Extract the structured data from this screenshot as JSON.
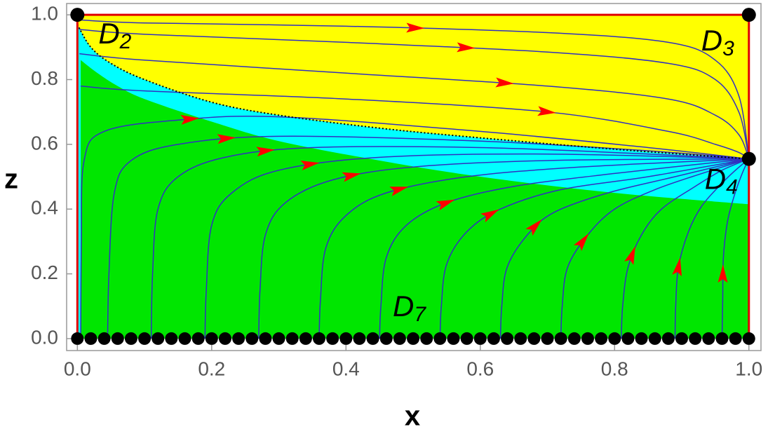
{
  "chart_data": {
    "type": "phase-portrait",
    "x_label": "x",
    "y_label": "z",
    "xlim": [
      -0.016,
      1.018
    ],
    "ylim": [
      -0.037,
      1.035
    ],
    "xticks": [
      {
        "value": 0,
        "label": "0.0"
      },
      {
        "value": 0.2,
        "label": "0.2"
      },
      {
        "value": 0.4,
        "label": "0.4"
      },
      {
        "value": 0.6,
        "label": "0.6"
      },
      {
        "value": 0.8,
        "label": "0.8"
      },
      {
        "value": 1,
        "label": "1.0"
      }
    ],
    "yticks": [
      {
        "value": 0,
        "label": "0.0"
      },
      {
        "value": 0.2,
        "label": "0.2"
      },
      {
        "value": 0.4,
        "label": "0.4"
      },
      {
        "value": 0.6,
        "label": "0.6"
      },
      {
        "value": 0.8,
        "label": "0.8"
      },
      {
        "value": 1,
        "label": "1.0"
      }
    ],
    "domain": {
      "x": [
        0,
        1
      ],
      "z": [
        0,
        1
      ]
    },
    "colors": {
      "upper": "#ffff00",
      "middle": "#00ffff",
      "lower": "#00e600",
      "border": "#e00000",
      "stream": "#3030c0",
      "arrow": "#ff0000",
      "point": "#000000"
    },
    "separatrix": {
      "x": [
        0,
        0.02,
        0.05,
        0.1,
        0.2,
        0.3,
        0.45,
        0.6,
        0.8,
        1
      ],
      "z": [
        0.97,
        0.9,
        0.85,
        0.8,
        0.73,
        0.69,
        0.65,
        0.62,
        0.585,
        0.555
      ]
    },
    "lower_boundary": {
      "x": [
        0.005,
        0.03,
        0.06,
        0.1,
        0.2,
        0.3,
        0.45,
        0.6,
        0.8,
        1
      ],
      "z": [
        0.86,
        0.82,
        0.78,
        0.74,
        0.67,
        0.61,
        0.55,
        0.5,
        0.45,
        0.415
      ]
    },
    "trajectories": [
      {
        "x": [
          0,
          0.1,
          0.4,
          0.7,
          0.88,
          0.95,
          0.985,
          1
        ],
        "z": [
          0.985,
          0.975,
          0.965,
          0.945,
          0.915,
          0.86,
          0.75,
          0.555
        ]
      },
      {
        "x": [
          0.003,
          0.1,
          0.4,
          0.7,
          0.88,
          0.95,
          0.985,
          1
        ],
        "z": [
          0.955,
          0.94,
          0.915,
          0.885,
          0.85,
          0.8,
          0.7,
          0.555
        ]
      },
      {
        "x": [
          0.003,
          0.1,
          0.4,
          0.7,
          0.88,
          0.95,
          0.985,
          1
        ],
        "z": [
          0.88,
          0.86,
          0.82,
          0.78,
          0.74,
          0.69,
          0.63,
          0.555
        ]
      },
      {
        "x": [
          0.005,
          0.1,
          0.4,
          0.7,
          0.88,
          0.95,
          0.985,
          1
        ],
        "z": [
          0.78,
          0.765,
          0.74,
          0.7,
          0.64,
          0.6,
          0.575,
          0.555
        ]
      },
      {
        "x": [
          0.005,
          0.006,
          0.01,
          0.04,
          0.15,
          0.3,
          0.6,
          0.85,
          1
        ],
        "z": [
          0,
          0.3,
          0.55,
          0.64,
          0.675,
          0.685,
          0.64,
          0.59,
          0.555
        ]
      },
      {
        "x": [
          0.045,
          0.047,
          0.055,
          0.08,
          0.15,
          0.3,
          0.6,
          0.85,
          1
        ],
        "z": [
          0,
          0.2,
          0.45,
          0.55,
          0.6,
          0.625,
          0.61,
          0.58,
          0.555
        ]
      },
      {
        "x": [
          0.11,
          0.112,
          0.12,
          0.15,
          0.22,
          0.35,
          0.6,
          0.85,
          1
        ],
        "z": [
          0,
          0.2,
          0.4,
          0.5,
          0.56,
          0.59,
          0.59,
          0.57,
          0.555
        ]
      },
      {
        "x": [
          0.19,
          0.192,
          0.2,
          0.23,
          0.3,
          0.45,
          0.7,
          1
        ],
        "z": [
          0,
          0.15,
          0.35,
          0.45,
          0.52,
          0.56,
          0.57,
          0.555
        ]
      },
      {
        "x": [
          0.27,
          0.272,
          0.28,
          0.31,
          0.38,
          0.5,
          0.7,
          1
        ],
        "z": [
          0,
          0.15,
          0.32,
          0.42,
          0.49,
          0.53,
          0.55,
          0.555
        ]
      },
      {
        "x": [
          0.36,
          0.362,
          0.37,
          0.4,
          0.46,
          0.58,
          0.75,
          1
        ],
        "z": [
          0,
          0.12,
          0.28,
          0.38,
          0.45,
          0.5,
          0.53,
          0.555
        ]
      },
      {
        "x": [
          0.45,
          0.452,
          0.46,
          0.49,
          0.55,
          0.65,
          0.8,
          1
        ],
        "z": [
          0,
          0.1,
          0.25,
          0.35,
          0.42,
          0.47,
          0.51,
          0.555
        ]
      },
      {
        "x": [
          0.54,
          0.542,
          0.55,
          0.58,
          0.63,
          0.72,
          0.85,
          1
        ],
        "z": [
          0,
          0.1,
          0.23,
          0.33,
          0.4,
          0.46,
          0.5,
          0.555
        ]
      },
      {
        "x": [
          0.63,
          0.632,
          0.64,
          0.67,
          0.71,
          0.79,
          0.89,
          1
        ],
        "z": [
          0,
          0.1,
          0.22,
          0.32,
          0.39,
          0.45,
          0.5,
          0.555
        ]
      },
      {
        "x": [
          0.72,
          0.722,
          0.73,
          0.76,
          0.8,
          0.86,
          0.93,
          1
        ],
        "z": [
          0,
          0.1,
          0.22,
          0.32,
          0.4,
          0.46,
          0.51,
          0.555
        ]
      },
      {
        "x": [
          0.81,
          0.812,
          0.82,
          0.84,
          0.87,
          0.92,
          0.96,
          1
        ],
        "z": [
          0,
          0.1,
          0.22,
          0.32,
          0.4,
          0.47,
          0.52,
          0.555
        ]
      },
      {
        "x": [
          0.89,
          0.891,
          0.895,
          0.91,
          0.93,
          0.96,
          0.98,
          1
        ],
        "z": [
          0,
          0.1,
          0.22,
          0.33,
          0.41,
          0.48,
          0.52,
          0.555
        ]
      },
      {
        "x": [
          0.96,
          0.961,
          0.962,
          0.968,
          0.978,
          0.99,
          1
        ],
        "z": [
          0,
          0.12,
          0.25,
          0.36,
          0.44,
          0.51,
          0.555
        ]
      }
    ],
    "fixed_points": [
      {
        "label": "D",
        "sub": "2",
        "x": 0,
        "z": 1
      },
      {
        "label": "D",
        "sub": "3",
        "x": 1,
        "z": 1
      },
      {
        "label": "D",
        "sub": "4",
        "x": 1,
        "z": 0.555
      }
    ],
    "fixed_line": {
      "label": "D",
      "sub": "7",
      "z": 0,
      "x": [
        0,
        0.02,
        0.04,
        0.06,
        0.08,
        0.1,
        0.12,
        0.14,
        0.16,
        0.18,
        0.2,
        0.22,
        0.24,
        0.26,
        0.28,
        0.3,
        0.32,
        0.34,
        0.36,
        0.38,
        0.4,
        0.42,
        0.44,
        0.46,
        0.48,
        0.5,
        0.52,
        0.54,
        0.56,
        0.58,
        0.6,
        0.62,
        0.64,
        0.66,
        0.68,
        0.7,
        0.72,
        0.74,
        0.76,
        0.78,
        0.8,
        0.82,
        0.84,
        0.86,
        0.88,
        0.9,
        0.92,
        0.94,
        0.96,
        0.98,
        1
      ]
    }
  }
}
